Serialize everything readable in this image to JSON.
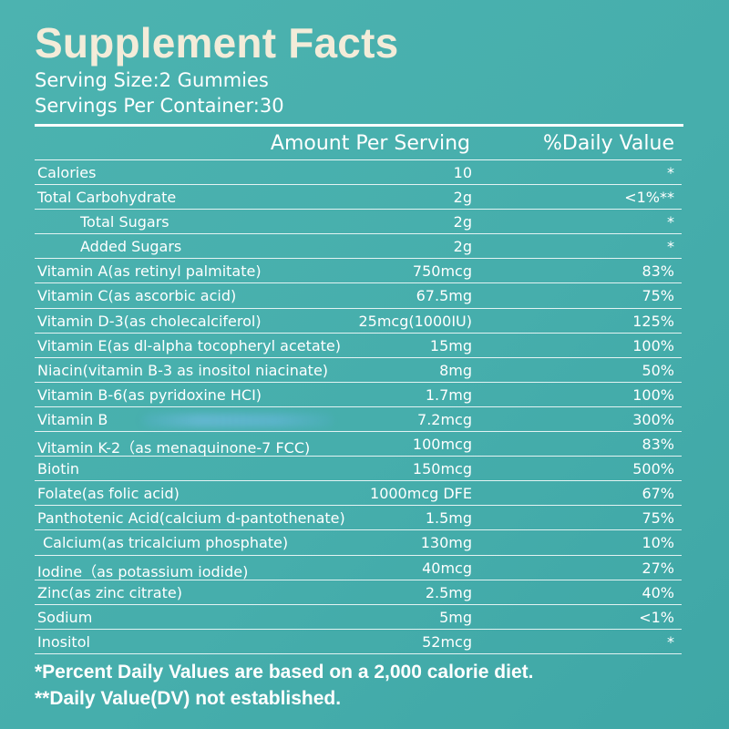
{
  "title": "Supplement Facts",
  "serving_size": "Serving Size:2 Gummies",
  "servings_per_container": "Servings Per Container:30",
  "header": {
    "amount": "Amount Per Serving",
    "daily_value": "%Daily Value"
  },
  "rows": [
    {
      "name": "Calories",
      "amount": "10",
      "dv": "*"
    },
    {
      "name": "Total Carbohydrate",
      "amount": "2g",
      "dv": "<1%**"
    },
    {
      "name": "Total Sugars",
      "amount": "2g",
      "dv": "*"
    },
    {
      "name": "Added Sugars",
      "amount": "2g",
      "dv": "*"
    },
    {
      "name": "Vitamin A(as retinyl palmitate)",
      "amount": "750mcg",
      "dv": "83%"
    },
    {
      "name": "Vitamin C(as ascorbic acid)",
      "amount": "67.5mg",
      "dv": "75%"
    },
    {
      "name": "Vitamin D-3(as cholecalciferol)",
      "amount": "25mcg(1000IU)",
      "dv": "125%"
    },
    {
      "name": "Vitamin E(as dl-alpha tocopheryl acetate)",
      "amount": "15mg",
      "dv": "100%"
    },
    {
      "name": "Niacin(vitamin B-3 as inositol niacinate)",
      "amount": "8mg",
      "dv": "50%"
    },
    {
      "name": "Vitamin B-6(as pyridoxine HCI)",
      "amount": "1.7mg",
      "dv": "100%"
    },
    {
      "name": "Vitamin B",
      "amount": "7.2mcg",
      "dv": "300%"
    },
    {
      "name": "Vitamin K-2（as menaquinone-7 FCC)",
      "amount": "100mcg",
      "dv": "83%"
    },
    {
      "name": "Biotin",
      "amount": "150mcg",
      "dv": "500%"
    },
    {
      "name": "Folate(as folic acid)",
      "amount": "1000mcg DFE",
      "dv": "67%"
    },
    {
      "name": "Panthotenic Acid(calcium d-pantothenate)",
      "amount": "1.5mg",
      "dv": "75%"
    },
    {
      "name": "Calcium(as tricalcium phosphate)",
      "amount": "130mg",
      "dv": "10%"
    },
    {
      "name": "Iodine（as potassium iodide)",
      "amount": "40mcg",
      "dv": "27%"
    },
    {
      "name": "Zinc(as zinc citrate)",
      "amount": "2.5mg",
      "dv": "40%"
    },
    {
      "name": "Sodium",
      "amount": "5mg",
      "dv": "<1%"
    },
    {
      "name": "Inositol",
      "amount": "52mcg",
      "dv": "*"
    }
  ],
  "footnotes": [
    "*Percent Daily Values are based on a 2,000 calorie diet.",
    "**Daily Value(DV) not established."
  ]
}
